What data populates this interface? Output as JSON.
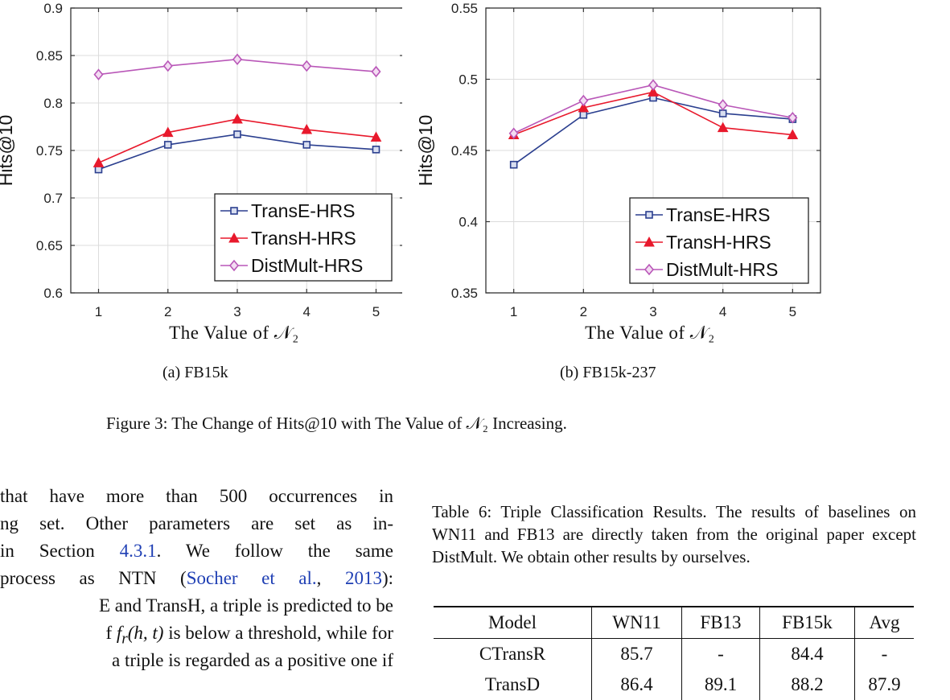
{
  "figure": {
    "caption": "Figure 3: The Change of Hits@10 with The Value of 𝒩₂ Increasing."
  },
  "chart_data": [
    {
      "type": "line",
      "subcaption": "(a) FB15k",
      "xlabel": "The Value of 𝒩₂",
      "ylabel": "Hits@10",
      "x": [
        1,
        2,
        3,
        4,
        5
      ],
      "xlim": [
        0.6,
        5.4
      ],
      "ylim": [
        0.6,
        0.9
      ],
      "yticks": [
        "0.6",
        "0.65",
        "0.7",
        "0.75",
        "0.8",
        "0.85",
        "0.9"
      ],
      "xticks": [
        "1",
        "2",
        "3",
        "4",
        "5"
      ],
      "grid": true,
      "legend_position": "bottom-right",
      "series": [
        {
          "name": "TransE-HRS",
          "color": "#2b3f8f",
          "marker": "square",
          "values": [
            0.73,
            0.756,
            0.767,
            0.756,
            0.751
          ]
        },
        {
          "name": "TransH-HRS",
          "color": "#e8192c",
          "marker": "triangle",
          "values": [
            0.737,
            0.769,
            0.783,
            0.772,
            0.764
          ]
        },
        {
          "name": "DistMult-HRS",
          "color": "#b957b8",
          "marker": "diamond",
          "values": [
            0.83,
            0.839,
            0.846,
            0.839,
            0.833
          ]
        }
      ]
    },
    {
      "type": "line",
      "subcaption": "(b) FB15k-237",
      "xlabel": "The Value of 𝒩₂",
      "ylabel": "Hits@10",
      "x": [
        1,
        2,
        3,
        4,
        5
      ],
      "xlim": [
        0.6,
        5.4
      ],
      "ylim": [
        0.35,
        0.55
      ],
      "yticks": [
        "0.35",
        "0.4",
        "0.45",
        "0.5",
        "0.55"
      ],
      "xticks": [
        "1",
        "2",
        "3",
        "4",
        "5"
      ],
      "grid": true,
      "legend_position": "bottom-right",
      "series": [
        {
          "name": "TransE-HRS",
          "color": "#2b3f8f",
          "marker": "square",
          "values": [
            0.44,
            0.475,
            0.487,
            0.476,
            0.472
          ]
        },
        {
          "name": "TransH-HRS",
          "color": "#e8192c",
          "marker": "triangle",
          "values": [
            0.461,
            0.48,
            0.491,
            0.466,
            0.461
          ]
        },
        {
          "name": "DistMult-HRS",
          "color": "#b957b8",
          "marker": "diamond",
          "values": [
            0.462,
            0.485,
            0.496,
            0.482,
            0.473
          ]
        }
      ]
    }
  ],
  "body": {
    "lines": [
      "that have more than 500 occurrences in",
      "ng set.  Other parameters are set as in-",
      "in Section 4.3.1.  We follow the same",
      "process as NTN (Socher et al., 2013):",
      "E and TransH, a triple is predicted to be",
      "f fr(h, t) is below a threshold, while for",
      "a triple is regarded as a positive one if"
    ],
    "l3_a": "in Section ",
    "l3_link": "4.3.1",
    "l3_b": ".  We follow the same",
    "l4_a": "process as NTN (",
    "l4_cite": "Socher et al.",
    "l4_b": ", ",
    "l4_year": "2013",
    "l4_c": "):",
    "l6_a": "f ",
    "l6_f": "f",
    "l6_sub": "r",
    "l6_b": "(h, t)",
    "l6_c": " is below a threshold, while for"
  },
  "table": {
    "caption": "Table 6: Triple Classification Results. The results of baselines on WN11 and FB13 are directly taken from the original paper except DistMult. We obtain other results by ourselves.",
    "headers": [
      "Model",
      "WN11",
      "FB13",
      "FB15k",
      "Avg"
    ],
    "rows": [
      [
        "CTransR",
        "85.7",
        "-",
        "84.4",
        "-"
      ],
      [
        "TransD",
        "86.4",
        "89.1",
        "88.2",
        "87.9"
      ]
    ]
  }
}
